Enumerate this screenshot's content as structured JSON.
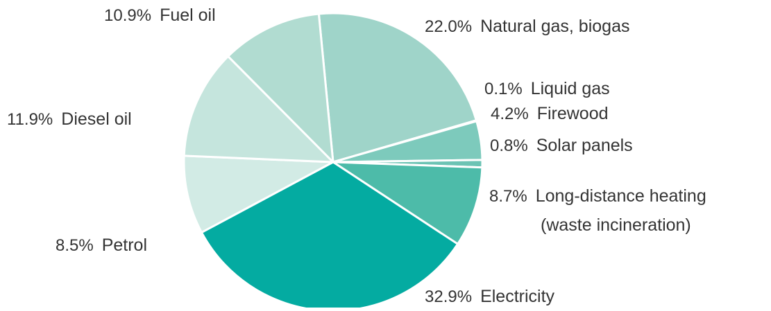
{
  "chart_data": {
    "type": "pie",
    "start_angle_deg": -5.5,
    "direction": "clockwise",
    "slice_edge_color": "#ffffff",
    "slices": [
      {
        "label": "Natural gas, biogas",
        "value": 22.0,
        "value_label": "22.0%",
        "color": "#9fd4c9"
      },
      {
        "label": "Liquid gas",
        "value": 0.1,
        "value_label": "0.1%",
        "color": "#8ccfc2"
      },
      {
        "label": "Firewood",
        "value": 4.2,
        "value_label": "4.2%",
        "color": "#7dcabc"
      },
      {
        "label": "Solar panels",
        "value": 0.8,
        "value_label": "0.8%",
        "color": "#6cc3b4"
      },
      {
        "label": "Long-distance heating (waste incineration)",
        "label_lines": [
          "Long-distance heating",
          "(waste incineration)"
        ],
        "value": 8.7,
        "value_label": "8.7%",
        "color": "#4dbba9"
      },
      {
        "label": "Electricity",
        "value": 32.9,
        "value_label": "32.9%",
        "color": "#04aba1"
      },
      {
        "label": "Petrol",
        "value": 8.5,
        "value_label": "8.5%",
        "color": "#d2ebe5"
      },
      {
        "label": "Diesel oil",
        "value": 11.9,
        "value_label": "11.9%",
        "color": "#c5e5dd"
      },
      {
        "label": "Fuel oil",
        "value": 10.9,
        "value_label": "10.9%",
        "color": "#b1dcd1"
      }
    ]
  }
}
